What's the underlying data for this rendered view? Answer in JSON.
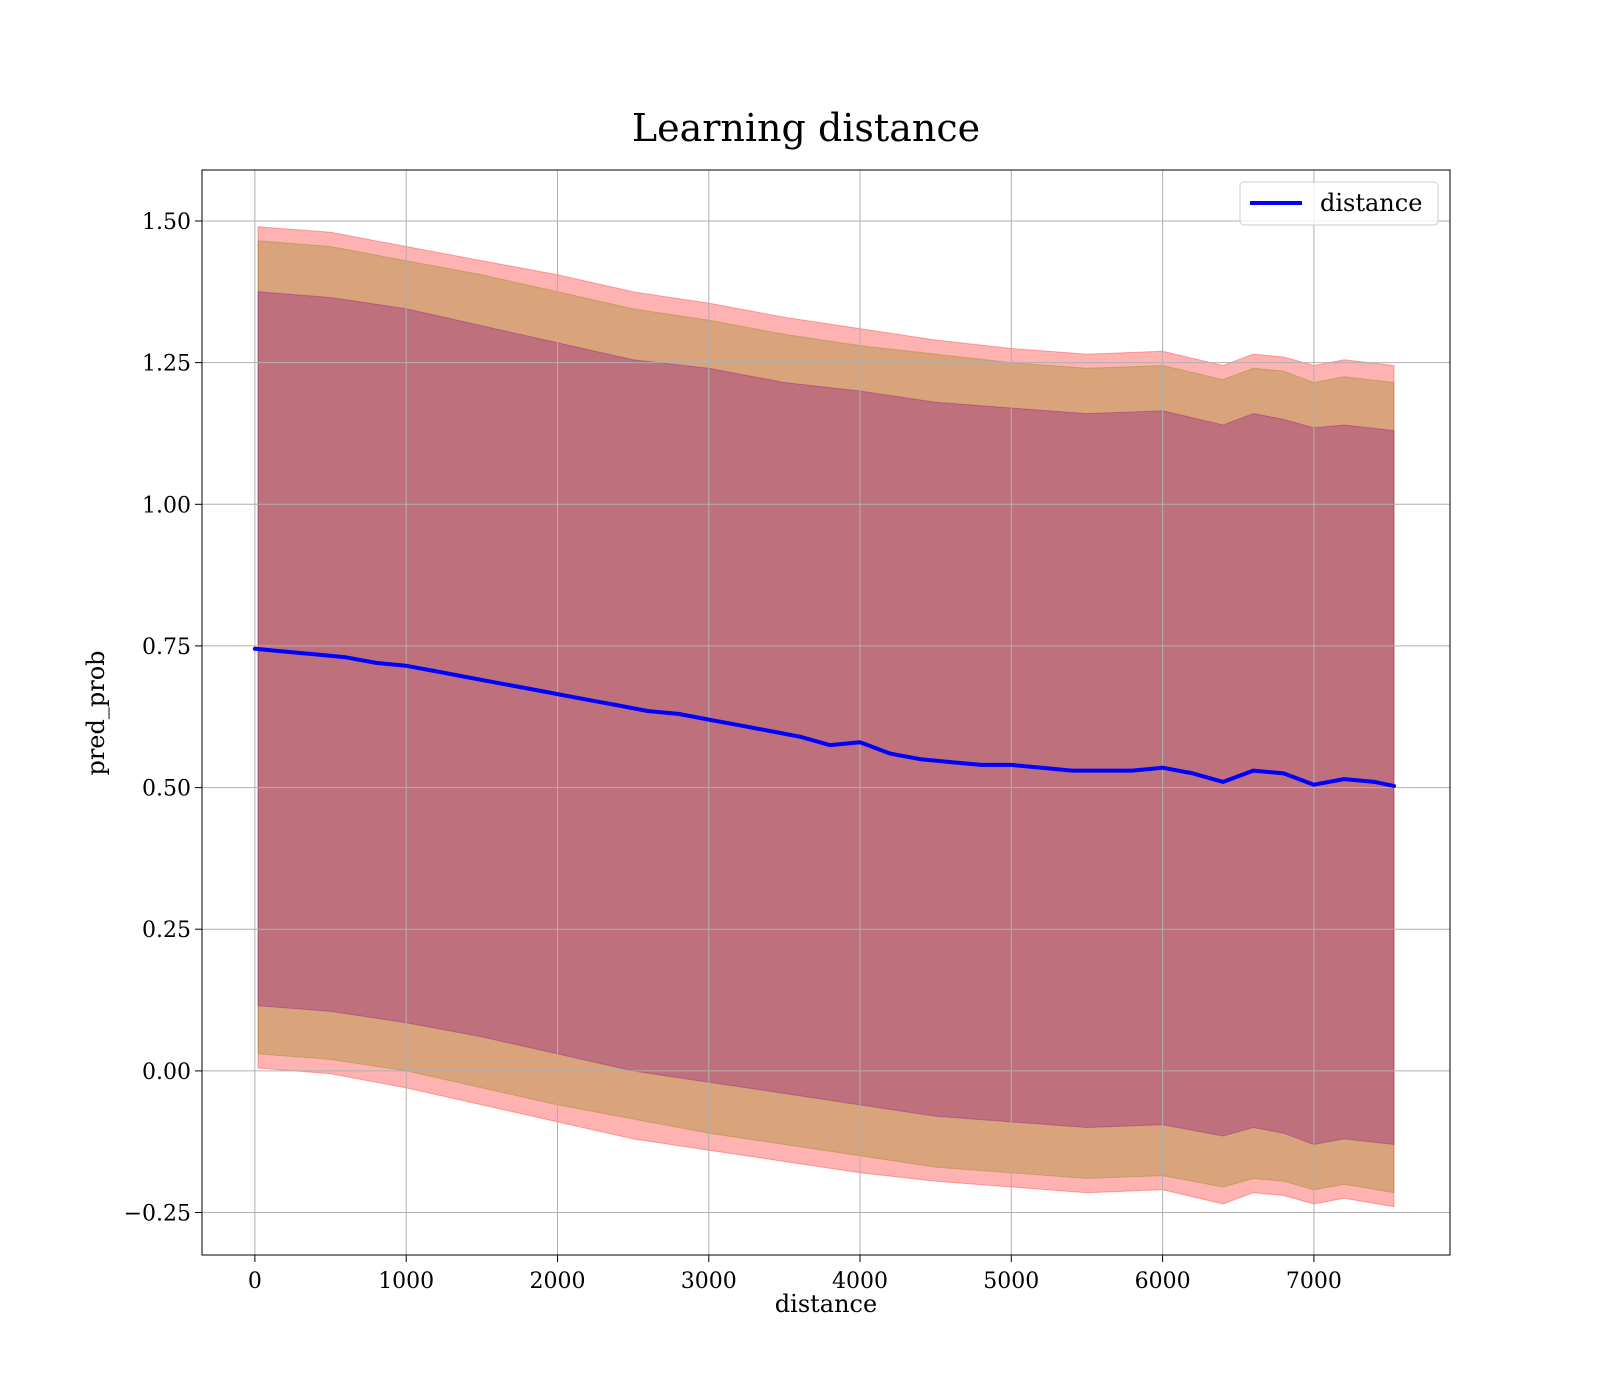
{
  "chart_data": {
    "type": "line",
    "title": "Learning distance",
    "xlabel": "distance",
    "ylabel": "pred_prob",
    "xlim": [
      -350,
      7900
    ],
    "ylim": [
      -0.325,
      1.59
    ],
    "xticks": [
      0,
      1000,
      2000,
      3000,
      4000,
      5000,
      6000,
      7000
    ],
    "xtick_labels": [
      "0",
      "1000",
      "2000",
      "3000",
      "4000",
      "5000",
      "6000",
      "7000"
    ],
    "yticks": [
      -0.25,
      0.0,
      0.25,
      0.5,
      0.75,
      1.0,
      1.25,
      1.5
    ],
    "ytick_labels": [
      "−0.25",
      "0.00",
      "0.25",
      "0.50",
      "0.75",
      "1.00",
      "1.25",
      "1.50"
    ],
    "grid": true,
    "legend_position": "top-right",
    "series": [
      {
        "name": "distance",
        "color": "#0000ff",
        "x": [
          0,
          200,
          400,
          600,
          800,
          1000,
          1200,
          1400,
          1600,
          1800,
          2000,
          2200,
          2400,
          2600,
          2800,
          3000,
          3200,
          3400,
          3600,
          3800,
          4000,
          4200,
          4400,
          4600,
          4800,
          5000,
          5200,
          5400,
          5600,
          5800,
          6000,
          6200,
          6400,
          6600,
          6800,
          7000,
          7200,
          7400,
          7530
        ],
        "y": [
          0.745,
          0.74,
          0.735,
          0.73,
          0.72,
          0.715,
          0.705,
          0.695,
          0.685,
          0.675,
          0.665,
          0.655,
          0.645,
          0.635,
          0.63,
          0.62,
          0.61,
          0.6,
          0.59,
          0.575,
          0.58,
          0.56,
          0.55,
          0.545,
          0.54,
          0.54,
          0.535,
          0.53,
          0.53,
          0.53,
          0.535,
          0.525,
          0.51,
          0.53,
          0.525,
          0.505,
          0.515,
          0.51,
          0.503
        ]
      }
    ],
    "bands": [
      {
        "color": "#ff0000",
        "opacity": 0.3,
        "x": [
          20,
          500,
          1000,
          1500,
          2000,
          2500,
          3000,
          3500,
          4000,
          4500,
          5000,
          5500,
          6000,
          6400,
          6600,
          6800,
          7000,
          7200,
          7530
        ],
        "upper": [
          1.49,
          1.48,
          1.455,
          1.43,
          1.405,
          1.375,
          1.355,
          1.33,
          1.31,
          1.29,
          1.275,
          1.265,
          1.27,
          1.245,
          1.265,
          1.26,
          1.245,
          1.255,
          1.245
        ],
        "lower": [
          0.005,
          -0.005,
          -0.03,
          -0.06,
          -0.09,
          -0.12,
          -0.14,
          -0.16,
          -0.18,
          -0.195,
          -0.205,
          -0.215,
          -0.21,
          -0.235,
          -0.215,
          -0.22,
          -0.235,
          -0.225,
          -0.24
        ]
      },
      {
        "color": "#808000",
        "opacity": 0.3,
        "x": [
          20,
          500,
          1000,
          1500,
          2000,
          2500,
          3000,
          3500,
          4000,
          4500,
          5000,
          5500,
          6000,
          6400,
          6600,
          6800,
          7000,
          7200,
          7530
        ],
        "upper": [
          1.465,
          1.455,
          1.43,
          1.405,
          1.375,
          1.345,
          1.325,
          1.3,
          1.28,
          1.265,
          1.25,
          1.24,
          1.245,
          1.22,
          1.24,
          1.235,
          1.215,
          1.225,
          1.215
        ],
        "lower": [
          0.03,
          0.02,
          0.0,
          -0.03,
          -0.06,
          -0.085,
          -0.11,
          -0.13,
          -0.15,
          -0.17,
          -0.18,
          -0.19,
          -0.185,
          -0.205,
          -0.19,
          -0.195,
          -0.21,
          -0.2,
          -0.215
        ]
      },
      {
        "color": "#800080",
        "opacity": 0.3,
        "x": [
          20,
          500,
          1000,
          1500,
          2000,
          2500,
          3000,
          3500,
          4000,
          4500,
          5000,
          5500,
          6000,
          6400,
          6600,
          6800,
          7000,
          7200,
          7530
        ],
        "upper": [
          1.375,
          1.365,
          1.345,
          1.315,
          1.285,
          1.255,
          1.24,
          1.215,
          1.2,
          1.18,
          1.17,
          1.16,
          1.165,
          1.14,
          1.16,
          1.15,
          1.135,
          1.14,
          1.13
        ],
        "lower": [
          0.115,
          0.105,
          0.085,
          0.06,
          0.03,
          0.0,
          -0.02,
          -0.04,
          -0.06,
          -0.08,
          -0.09,
          -0.1,
          -0.095,
          -0.115,
          -0.1,
          -0.11,
          -0.13,
          -0.12,
          -0.13
        ]
      }
    ]
  }
}
